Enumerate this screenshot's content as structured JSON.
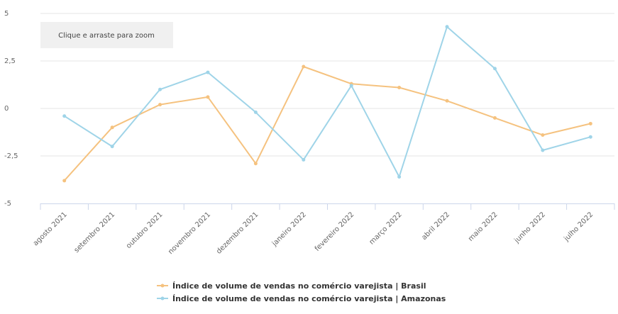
{
  "zoom_hint": "Clique e arraste para zoom",
  "chart_data": {
    "type": "line",
    "categories": [
      "agosto 2021",
      "setembro 2021",
      "outubro 2021",
      "novembro 2021",
      "dezembro 2021",
      "janeiro 2022",
      "fevereiro 2022",
      "março 2022",
      "abril 2022",
      "maio 2022",
      "junho 2022",
      "julho 2022"
    ],
    "series": [
      {
        "name": "Índice de volume de vendas no comércio varejista | Brasil",
        "color": "#f5c27f",
        "values": [
          -3.8,
          -1.0,
          0.2,
          0.6,
          -2.9,
          2.2,
          1.3,
          1.1,
          0.4,
          -0.5,
          -1.4,
          -0.8
        ]
      },
      {
        "name": "Índice de volume de vendas no comércio varejista | Amazonas",
        "color": "#9fd4e8",
        "values": [
          -0.4,
          -2.0,
          1.0,
          1.9,
          -0.2,
          -2.7,
          1.2,
          -3.6,
          4.3,
          2.1,
          -2.2,
          -1.5
        ]
      }
    ],
    "yticks": [
      -5,
      -2.5,
      0,
      2.5,
      5
    ],
    "ytick_labels": [
      "-5",
      "-2,5",
      "0",
      "2,5",
      "5"
    ],
    "ylim": [
      -5,
      5
    ],
    "grid": true,
    "legend_position": "bottom-center"
  }
}
